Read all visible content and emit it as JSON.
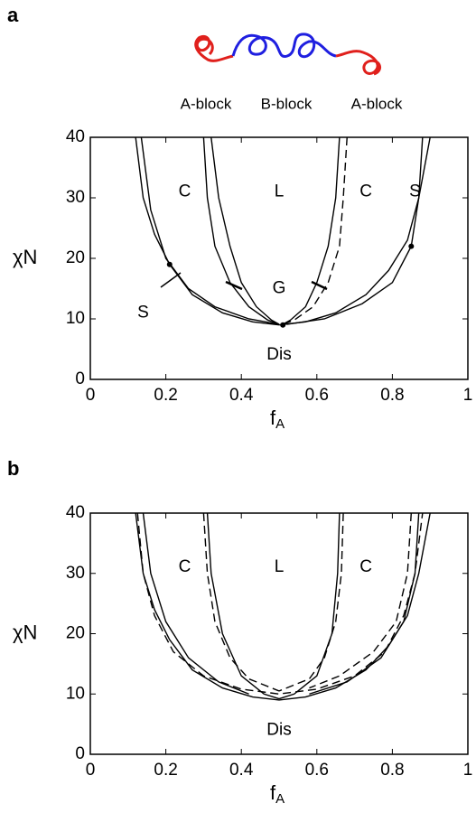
{
  "header": {
    "left_block": "A-block",
    "middle_block": "B-block",
    "right_block": "A-block"
  },
  "chart_data": [
    {
      "type": "line",
      "panel": "a",
      "ylabel": "χN",
      "xlabel": "f",
      "xlabel_sub": "A",
      "xlim": [
        0,
        1
      ],
      "ylim": [
        0,
        40
      ],
      "xticks": [
        0,
        0.2,
        0.4,
        0.6,
        0.8,
        1
      ],
      "yticks": [
        0,
        10,
        20,
        30,
        40
      ],
      "annotations": [
        "C",
        "L",
        "C",
        "S",
        "G",
        "S",
        "Dis"
      ],
      "series": [
        {
          "color": "#000000",
          "dashed": false,
          "x": [
            0.12,
            0.14,
            0.17,
            0.21,
            0.27,
            0.35,
            0.43,
            0.5,
            0.57,
            0.65,
            0.73,
            0.79,
            0.84,
            0.87,
            0.9
          ],
          "values": [
            40,
            30,
            24,
            19,
            14,
            11,
            9.5,
            9,
            9.5,
            11,
            14,
            18,
            23,
            30,
            40
          ]
        },
        {
          "color": "#000000",
          "dashed": false,
          "x": [
            0.135,
            0.16,
            0.2,
            0.26,
            0.33,
            0.42,
            0.5
          ],
          "values": [
            40,
            28,
            20,
            15,
            12,
            10,
            9.1
          ]
        },
        {
          "color": "#000000",
          "dashed": false,
          "x": [
            0.88,
            0.87,
            0.85,
            0.8,
            0.72,
            0.62,
            0.52
          ],
          "values": [
            40,
            30,
            22,
            16,
            12.5,
            10,
            9.1
          ]
        },
        {
          "color": "#000000",
          "dashed": false,
          "x": [
            0.3,
            0.31,
            0.33,
            0.37,
            0.42,
            0.47,
            0.5
          ],
          "values": [
            40,
            30,
            22,
            16,
            12,
            9.8,
            9.1
          ]
        },
        {
          "color": "#000000",
          "dashed": false,
          "x": [
            0.32,
            0.34,
            0.37,
            0.4,
            0.44,
            0.48,
            0.5
          ],
          "values": [
            40,
            30,
            22,
            16,
            12,
            9.8,
            9.1
          ]
        },
        {
          "color": "#000000",
          "dashed": false,
          "x": [
            0.66,
            0.65,
            0.63,
            0.6,
            0.57,
            0.53,
            0.51
          ],
          "values": [
            40,
            30,
            22,
            16,
            12,
            9.8,
            9.1
          ]
        },
        {
          "color": "#000000",
          "dashed": true,
          "x": [
            0.68,
            0.67,
            0.66,
            0.63,
            0.59,
            0.54,
            0.51
          ],
          "values": [
            40,
            30,
            22,
            16,
            12,
            9.8,
            9.1
          ]
        }
      ]
    },
    {
      "type": "line",
      "panel": "b",
      "ylabel": "χN",
      "xlabel": "f",
      "xlabel_sub": "A",
      "xlim": [
        0,
        1
      ],
      "ylim": [
        0,
        40
      ],
      "xticks": [
        0,
        0.2,
        0.4,
        0.6,
        0.8,
        1
      ],
      "yticks": [
        0,
        10,
        20,
        30,
        40
      ],
      "annotations": [
        "C",
        "L",
        "C",
        "Dis"
      ],
      "series": [
        {
          "color": "#000000",
          "dashed": false,
          "x": [
            0.12,
            0.14,
            0.17,
            0.21,
            0.27,
            0.35,
            0.43,
            0.5,
            0.57,
            0.65,
            0.73,
            0.79,
            0.84,
            0.87,
            0.9
          ],
          "values": [
            40,
            30,
            24,
            19,
            14,
            11,
            9.5,
            9,
            9.5,
            11,
            14,
            18,
            23,
            30,
            40
          ]
        },
        {
          "color": "#000000",
          "dashed": true,
          "x": [
            0.125,
            0.14,
            0.17,
            0.22,
            0.3,
            0.4,
            0.5,
            0.6,
            0.7,
            0.78,
            0.83,
            0.86,
            0.88
          ],
          "values": [
            40,
            30,
            23,
            17,
            13,
            10.8,
            10,
            10.8,
            13,
            17,
            23,
            30,
            40
          ]
        },
        {
          "color": "#000000",
          "dashed": false,
          "x": [
            0.31,
            0.32,
            0.35,
            0.4,
            0.46,
            0.5
          ],
          "values": [
            40,
            30,
            20,
            13,
            10,
            9.2
          ]
        },
        {
          "color": "#000000",
          "dashed": true,
          "x": [
            0.3,
            0.31,
            0.33,
            0.37,
            0.42,
            0.5
          ],
          "values": [
            40,
            30,
            22,
            16,
            12.5,
            10.5
          ]
        },
        {
          "color": "#000000",
          "dashed": false,
          "x": [
            0.66,
            0.655,
            0.64,
            0.6,
            0.54,
            0.5
          ],
          "values": [
            40,
            30,
            20,
            13,
            10,
            9.2
          ]
        },
        {
          "color": "#000000",
          "dashed": true,
          "x": [
            0.67,
            0.665,
            0.65,
            0.62,
            0.58,
            0.5
          ],
          "values": [
            40,
            30,
            22,
            16,
            12.5,
            10.5
          ]
        },
        {
          "color": "#000000",
          "dashed": false,
          "x": [
            0.87,
            0.86,
            0.83,
            0.77,
            0.68,
            0.58
          ],
          "values": [
            40,
            30,
            22,
            16,
            12,
            10
          ]
        },
        {
          "color": "#000000",
          "dashed": true,
          "x": [
            0.85,
            0.84,
            0.81,
            0.75,
            0.66,
            0.58
          ],
          "values": [
            40,
            30,
            22,
            17,
            13,
            11
          ]
        },
        {
          "color": "#000000",
          "dashed": false,
          "x": [
            0.14,
            0.16,
            0.2,
            0.26,
            0.34,
            0.42
          ],
          "values": [
            40,
            30,
            22,
            16,
            12,
            10
          ]
        }
      ]
    }
  ]
}
